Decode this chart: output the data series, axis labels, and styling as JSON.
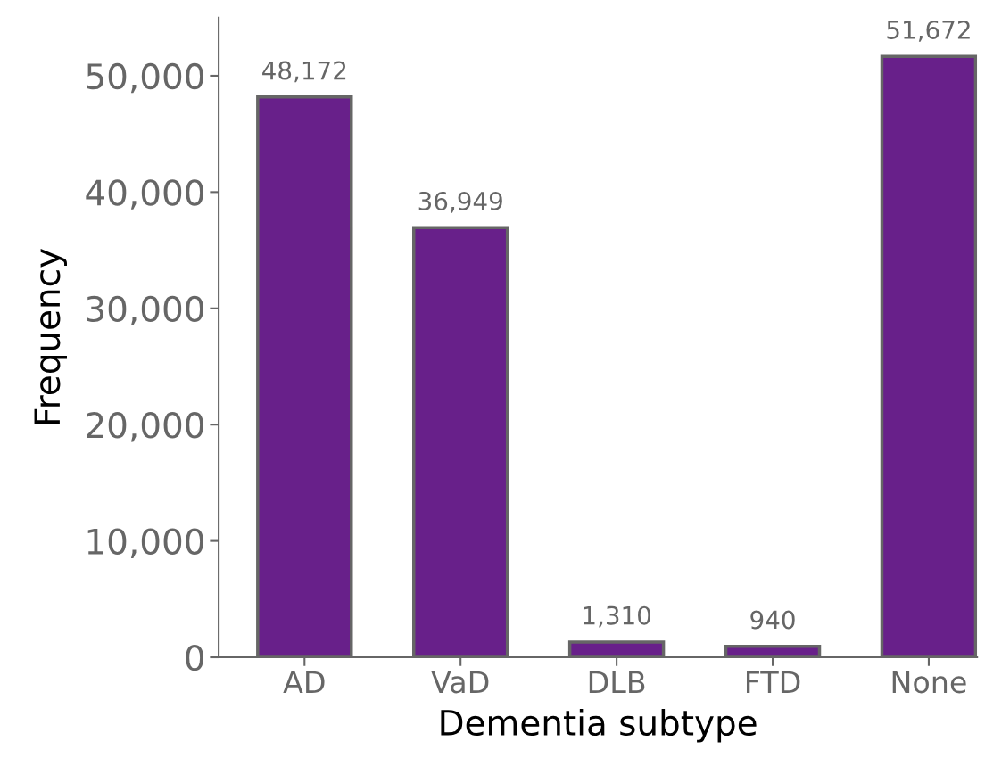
{
  "chart_data": {
    "type": "bar",
    "xlabel": "Dementia subtype",
    "ylabel": "Frequency",
    "categories": [
      "AD",
      "VaD",
      "DLB",
      "FTD",
      "None"
    ],
    "values": [
      48172,
      36949,
      1310,
      940,
      51672
    ],
    "value_labels": [
      "48,172",
      "36,949",
      "1,310",
      "940",
      "51,672"
    ],
    "color": "#68208a",
    "ylim": [
      0,
      55000
    ],
    "yticks": [
      {
        "value": 0,
        "label": "0"
      },
      {
        "value": 10000,
        "label": "10,000"
      },
      {
        "value": 20000,
        "label": "20,000"
      },
      {
        "value": 30000,
        "label": "30,000"
      },
      {
        "value": 40000,
        "label": "40,000"
      },
      {
        "value": 50000,
        "label": "50,000"
      }
    ],
    "grid": false,
    "legend": false
  }
}
